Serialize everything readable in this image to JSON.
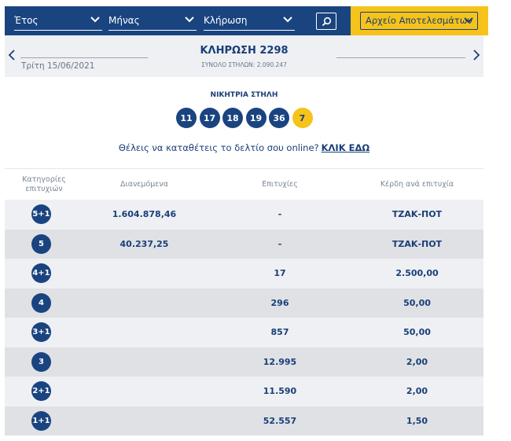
{
  "filters": {
    "year_label": "Έτος",
    "month_label": "Μήνας",
    "draw_label": "Κλήρωση",
    "archive_label": "Αρχείο Αποτελεσμάτων"
  },
  "draw": {
    "title": "ΚΛΗΡΩΣΗ 2298",
    "total_columns": "ΣΥΝΟΛΟ ΣΤΗΛΩΝ: 2.090.247",
    "date": "Τρίτη 15/06/2021"
  },
  "winning": {
    "label": "ΝΙΚΗΤΡΙΑ ΣΤΗΛΗ",
    "numbers": [
      "11",
      "17",
      "18",
      "19",
      "36"
    ],
    "joker": "7"
  },
  "online": {
    "text": "Θέλεις να καταθέτεις το δελτίο σου online?",
    "link": "ΚΛΙΚ ΕΔΩ"
  },
  "table": {
    "headers": {
      "category": "Κατηγορίες επιτυχιών",
      "distributed": "Διανεμόμενα",
      "winners": "Επιτυχίες",
      "prize": "Κέρδη ανά επιτυχία"
    },
    "rows": [
      {
        "category": "5+1",
        "distributed": "1.604.878,46",
        "winners": "-",
        "prize": "ΤΖΑΚ-ΠΟΤ"
      },
      {
        "category": "5",
        "distributed": "40.237,25",
        "winners": "-",
        "prize": "ΤΖΑΚ-ΠΟΤ"
      },
      {
        "category": "4+1",
        "distributed": "",
        "winners": "17",
        "prize": "2.500,00"
      },
      {
        "category": "4",
        "distributed": "",
        "winners": "296",
        "prize": "50,00"
      },
      {
        "category": "3+1",
        "distributed": "",
        "winners": "857",
        "prize": "50,00"
      },
      {
        "category": "3",
        "distributed": "",
        "winners": "12.995",
        "prize": "2,00"
      },
      {
        "category": "2+1",
        "distributed": "",
        "winners": "11.590",
        "prize": "2,00"
      },
      {
        "category": "1+1",
        "distributed": "",
        "winners": "52.557",
        "prize": "1,50"
      }
    ]
  },
  "colors": {
    "navy": "#1a4480",
    "yellow": "#f6c31b",
    "row_light": "#eef0f3",
    "row_dark": "#dfe1e5"
  }
}
